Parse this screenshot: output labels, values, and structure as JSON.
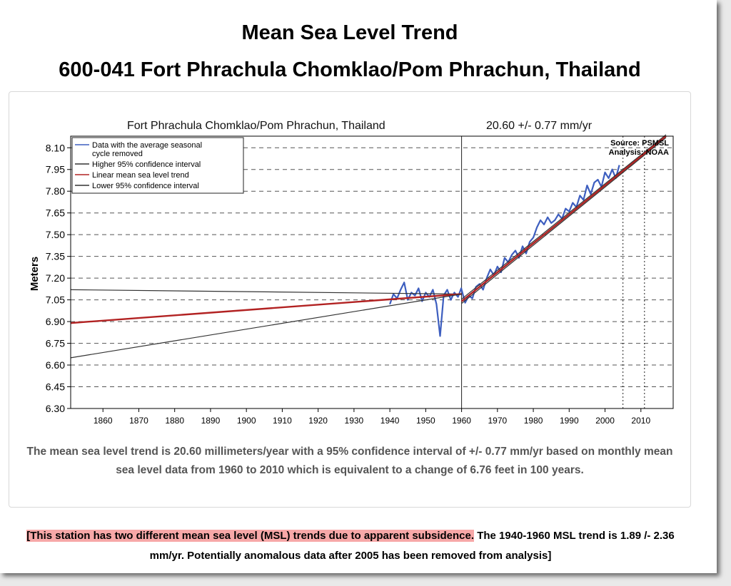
{
  "header": {
    "title": "Mean Sea Level Trend",
    "subtitle": "600-041 Fort Phrachula Chomklao/Pom Phrachun, Thailand"
  },
  "chart_data": {
    "type": "line",
    "title_left": "Fort Phrachula Chomklao/Pom Phrachun, Thailand",
    "title_right": "20.60 +/- 0.77  mm/yr",
    "ylabel": "Meters",
    "xlabel": "",
    "xlim": [
      1851,
      2019
    ],
    "ylim": [
      6.3,
      8.18
    ],
    "xticks": [
      1860,
      1870,
      1880,
      1890,
      1900,
      1910,
      1920,
      1930,
      1940,
      1950,
      1960,
      1970,
      1980,
      1990,
      2000,
      2010
    ],
    "yticks": [
      "6.30",
      "6.45",
      "6.60",
      "6.75",
      "6.90",
      "7.05",
      "7.20",
      "7.35",
      "7.50",
      "7.65",
      "7.80",
      "7.95",
      "8.10"
    ],
    "grid": "dashed horizontal",
    "legend_position": "top-left",
    "source_text": "Source: PSMSL",
    "analysis_text": "Analysis: NOAA",
    "cutoff_lines_x": [
      1960,
      2005,
      2011
    ],
    "legend": [
      {
        "label": "Data with the average seasonal cycle removed",
        "color": "#3d5ebf"
      },
      {
        "label": "Higher 95% confidence interval",
        "color": "#333333"
      },
      {
        "label": "Linear mean sea level trend",
        "color": "#b22222"
      },
      {
        "label": "Lower 95% confidence interval",
        "color": "#333333"
      }
    ],
    "series": [
      {
        "name": "Data with the average seasonal cycle removed",
        "x": [
          1940.0,
          1941.0,
          1942.0,
          1943.0,
          1944.0,
          1945.0,
          1946.0,
          1947.0,
          1948.0,
          1949.0,
          1950.0,
          1951.0,
          1952.0,
          1953.0,
          1954.0,
          1955.0,
          1956.0,
          1957.0,
          1958.0,
          1959.0,
          1959.9,
          1961.0,
          1962.0,
          1963.0,
          1964.0,
          1965.0,
          1966.0,
          1967.0,
          1968.0,
          1969.0,
          1970.0,
          1971.0,
          1972.0,
          1973.0,
          1974.0,
          1975.0,
          1976.0,
          1977.0,
          1978.0,
          1979.0,
          1980.0,
          1981.0,
          1982.0,
          1983.0,
          1984.0,
          1985.0,
          1986.0,
          1987.0,
          1988.0,
          1989.0,
          1990.0,
          1991.0,
          1992.0,
          1993.0,
          1994.0,
          1995.0,
          1996.0,
          1997.0,
          1998.0,
          1999.0,
          2000.0,
          2001.0,
          2002.0,
          2003.0,
          2004.0
        ],
        "y": [
          7.02,
          7.09,
          7.06,
          7.12,
          7.17,
          7.05,
          7.1,
          7.08,
          7.13,
          7.04,
          7.1,
          7.07,
          7.12,
          7.02,
          6.8,
          7.08,
          7.12,
          7.05,
          7.1,
          7.07,
          7.13,
          7.03,
          7.08,
          7.06,
          7.14,
          7.16,
          7.12,
          7.2,
          7.26,
          7.22,
          7.28,
          7.24,
          7.34,
          7.31,
          7.36,
          7.39,
          7.34,
          7.42,
          7.37,
          7.45,
          7.48,
          7.55,
          7.6,
          7.57,
          7.62,
          7.58,
          7.6,
          7.64,
          7.61,
          7.68,
          7.66,
          7.72,
          7.69,
          7.77,
          7.74,
          7.84,
          7.78,
          7.86,
          7.88,
          7.83,
          7.93,
          7.89,
          7.95,
          7.89,
          7.98
        ],
        "color": "#3d5ebf"
      }
    ],
    "lines": [
      {
        "name": "Higher 95% confidence interval",
        "segments": [
          [
            [
              1851,
              7.12
            ],
            [
              1960,
              7.09
            ]
          ],
          [
            [
              1960,
              7.055
            ],
            [
              2017,
              8.19
            ]
          ]
        ],
        "color": "#333333"
      },
      {
        "name": "Linear mean sea level trend",
        "segments": [
          [
            [
              1851,
              6.89
            ],
            [
              1960,
              7.09
            ]
          ],
          [
            [
              1960,
              7.04
            ],
            [
              2017,
              8.18
            ]
          ]
        ],
        "color": "#b22222"
      },
      {
        "name": "Lower 95% confidence interval",
        "segments": [
          [
            [
              1851,
              6.65
            ],
            [
              1960,
              7.09
            ]
          ],
          [
            [
              1960,
              7.025
            ],
            [
              2017,
              8.17
            ]
          ]
        ],
        "color": "#333333"
      }
    ]
  },
  "description": "The mean sea level trend is 20.60 millimeters/year with a 95% confidence interval of +/- 0.77 mm/yr based on monthly mean sea level data from 1960 to 2010 which is equivalent to a change of 6.76 feet in 100 years.",
  "note": {
    "highlighted": "[This station has two different mean sea level (MSL) trends due to apparent subsidence.",
    "rest": " The 1940-1960 MSL trend is 1.89 /- 2.36 mm/yr. Potentially anomalous data after 2005 has been removed from analysis]"
  }
}
